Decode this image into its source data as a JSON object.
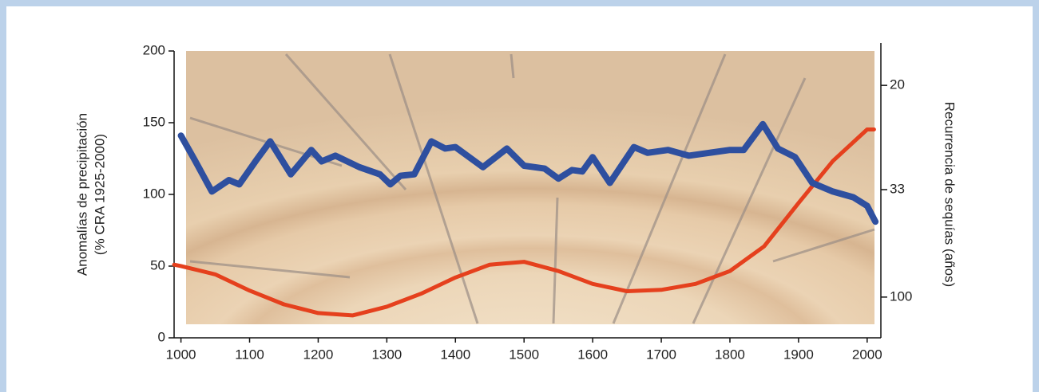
{
  "chart_data": {
    "type": "line",
    "ylabel": [
      "Anomalías de precipitación",
      "(% CRA 1925-2000)"
    ],
    "y2label": "Recurrencia de sequías (años)",
    "xlim": [
      990,
      2020
    ],
    "xticks": [
      1000,
      1100,
      1200,
      1300,
      1400,
      1500,
      1600,
      1700,
      1800,
      1900,
      2000
    ],
    "ylim": [
      0,
      200
    ],
    "yticks": [
      0,
      50,
      100,
      150,
      200
    ],
    "y2lim": [
      17.7,
      434
    ],
    "y2ticks": [
      20,
      33,
      100
    ],
    "y2scale": "reciprocal",
    "series": [
      {
        "color": "#2e4f9f",
        "axis": "y",
        "x": [
          1000,
          1020,
          1045,
          1070,
          1085,
          1110,
          1130,
          1160,
          1190,
          1205,
          1225,
          1260,
          1290,
          1305,
          1320,
          1340,
          1365,
          1385,
          1400,
          1440,
          1475,
          1500,
          1530,
          1550,
          1570,
          1585,
          1600,
          1625,
          1660,
          1680,
          1710,
          1740,
          1770,
          1800,
          1820,
          1848,
          1870,
          1895,
          1920,
          1950,
          1980,
          2000,
          2012
        ],
        "values": [
          141,
          124,
          102,
          110,
          107,
          124,
          137,
          114,
          131,
          123,
          127,
          119,
          114,
          107,
          113,
          114,
          137,
          132,
          133,
          119,
          132,
          120,
          118,
          111,
          117,
          116,
          126,
          108,
          133,
          129,
          131,
          127,
          129,
          131,
          131,
          149,
          132,
          126,
          108,
          102,
          98,
          92,
          81
        ]
      },
      {
        "color": "#e5401d",
        "axis": "y2",
        "x": [
          990,
          1000,
          1050,
          1100,
          1150,
          1200,
          1250,
          1300,
          1350,
          1400,
          1450,
          1500,
          1550,
          1600,
          1650,
          1700,
          1750,
          1800,
          1850,
          1900,
          1950,
          2000,
          2010
        ],
        "values": [
          62,
          63,
          70,
          89,
          116,
          143,
          153,
          122,
          94,
          73,
          62,
          60,
          67,
          80,
          90,
          88,
          80,
          67,
          51,
          36,
          28,
          24,
          24
        ]
      }
    ]
  }
}
